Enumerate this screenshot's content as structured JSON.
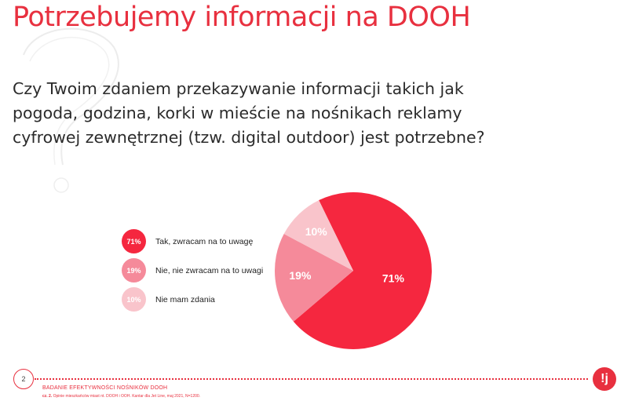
{
  "title": "Potrzebujemy informacji na DOOH",
  "question": "Czy Twoim zdaniem przekazywanie informacji takich jak pogoda, godzina, korki w mieście na nośnikach reklamy cyfrowej zewnętrznej (tzw. digital outdoor) jest potrzebne?",
  "colors": {
    "accent": "#e8303f",
    "slice_71": "#f5273f",
    "slice_19": "#f58a9a",
    "slice_10": "#f9c4cb"
  },
  "chart_data": {
    "type": "pie",
    "title": "",
    "slices": [
      {
        "label": "Tak, zwracam na to uwagę",
        "value": 71,
        "display": "71%",
        "color": "#f5273f"
      },
      {
        "label": "Nie, nie zwracam na to uwagi",
        "value": 19,
        "display": "19%",
        "color": "#f58a9a"
      },
      {
        "label": "Nie mam zdania",
        "value": 10,
        "display": "10%",
        "color": "#f9c4cb"
      }
    ],
    "legend_position": "left"
  },
  "footer": {
    "page_number": "2",
    "title": "BADANIE EFEKTYWNOŚCI NOŚNIKÓW DOOH",
    "source_bold": "cz. 2.",
    "source": "Opinie mieszkańców miast nt. DOOH i OOH. Kantar dla Jet Line, maj 2021, N=1200.",
    "logo_text": "!j"
  }
}
